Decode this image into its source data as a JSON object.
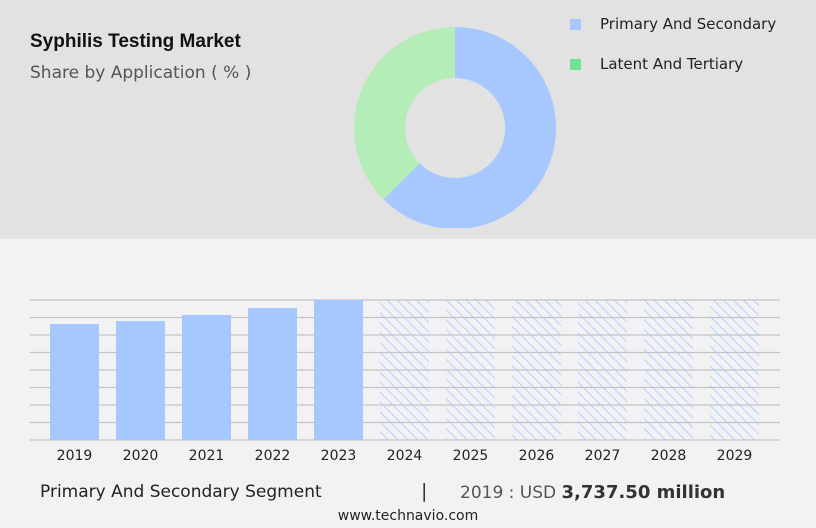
{
  "header": {
    "title": "Syphilis Testing Market",
    "subtitle": "Share by Application ( % )"
  },
  "legend": [
    {
      "label": "Primary And Secondary",
      "color": "#a6c8ff"
    },
    {
      "label": "Latent And Tertiary",
      "color": "#6fe393"
    }
  ],
  "chart_data": [
    {
      "type": "pie",
      "donut": true,
      "slices": [
        {
          "name": "Primary And Secondary",
          "value": 62.5,
          "color": "#a6c8ff"
        },
        {
          "name": "Latent And Tertiary",
          "value": 37.5,
          "color": "#b5edb8"
        }
      ]
    },
    {
      "type": "bar",
      "categories": [
        "2019",
        "2020",
        "2021",
        "2022",
        "2023",
        "2024",
        "2025",
        "2026",
        "2027",
        "2028",
        "2029"
      ],
      "values": [
        3737.5,
        3834,
        4028,
        4253,
        4511,
        null,
        null,
        null,
        null,
        null,
        null
      ],
      "forecast_categories": [
        "2024",
        "2025",
        "2026",
        "2027",
        "2028",
        "2029"
      ],
      "ylim": [
        0,
        4511
      ],
      "grid": true,
      "bar_color": "#a6c8ff",
      "y_tick_labels": false
    }
  ],
  "footer": {
    "segment": "Primary And Secondary Segment",
    "separator": "|",
    "value_prefix": "2019 : USD",
    "value": "3,737.50 million",
    "site": "www.technavio.com"
  }
}
